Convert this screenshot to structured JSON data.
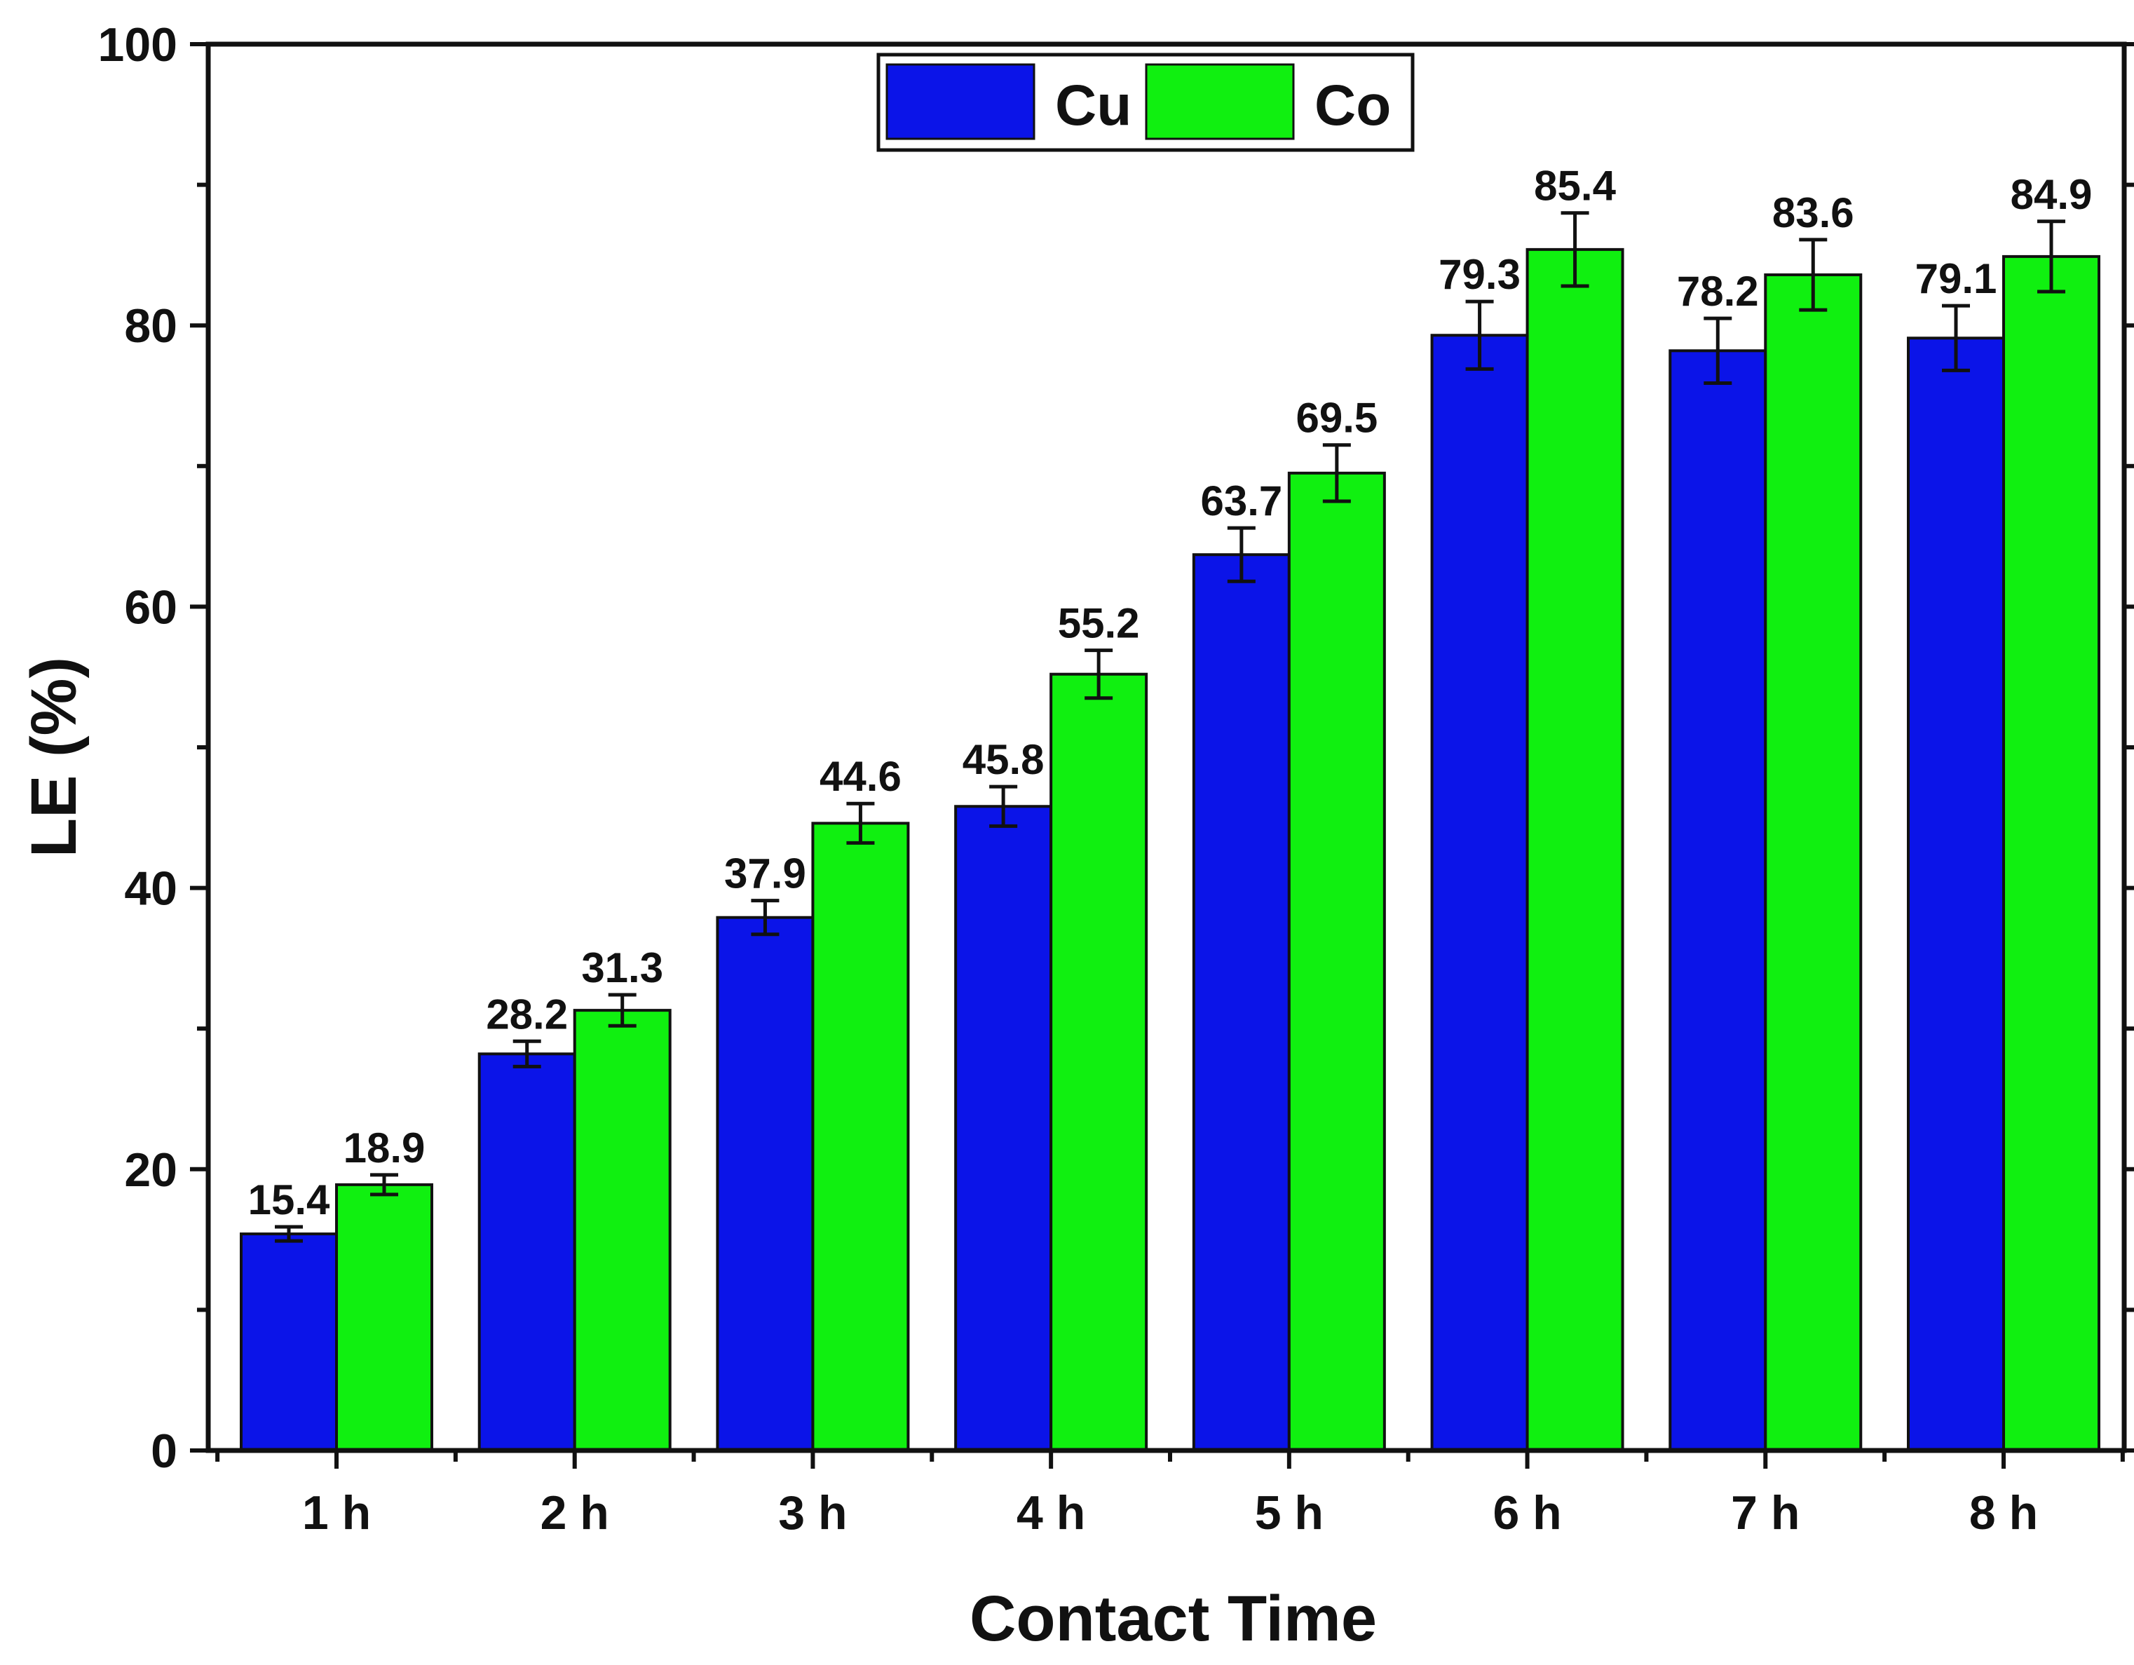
{
  "chart_data": {
    "type": "bar",
    "title": "",
    "xlabel": "Contact Time",
    "ylabel": "LE (%)",
    "ylim": [
      0,
      100
    ],
    "yticks": [
      0,
      20,
      40,
      60,
      80,
      100
    ],
    "ytick_labels": [
      "0",
      "20",
      "40",
      "60",
      "80",
      "100"
    ],
    "categories": [
      "1 h",
      "2 h",
      "3 h",
      "4 h",
      "5 h",
      "6 h",
      "7 h",
      "8 h"
    ],
    "series": [
      {
        "name": "Cu",
        "color": "#0B14E8",
        "values": [
          15.4,
          28.2,
          37.9,
          45.8,
          63.7,
          79.3,
          78.2,
          79.1
        ],
        "labels": [
          "15.4",
          "28.2",
          "37.9",
          "45.8",
          "63.7",
          "79.3",
          "78.2",
          "79.1"
        ],
        "errors": [
          0.5,
          0.9,
          1.2,
          1.4,
          1.9,
          2.4,
          2.3,
          2.3
        ]
      },
      {
        "name": "Co",
        "color": "#10F010",
        "values": [
          18.9,
          31.3,
          44.6,
          55.2,
          69.5,
          85.4,
          83.6,
          84.9
        ],
        "labels": [
          "18.9",
          "31.3",
          "44.6",
          "55.2",
          "69.5",
          "85.4",
          "83.6",
          "84.9"
        ],
        "errors": [
          0.7,
          1.1,
          1.4,
          1.7,
          2.0,
          2.6,
          2.5,
          2.5
        ]
      }
    ],
    "legend": {
      "position": "top-center"
    },
    "grid": false
  }
}
